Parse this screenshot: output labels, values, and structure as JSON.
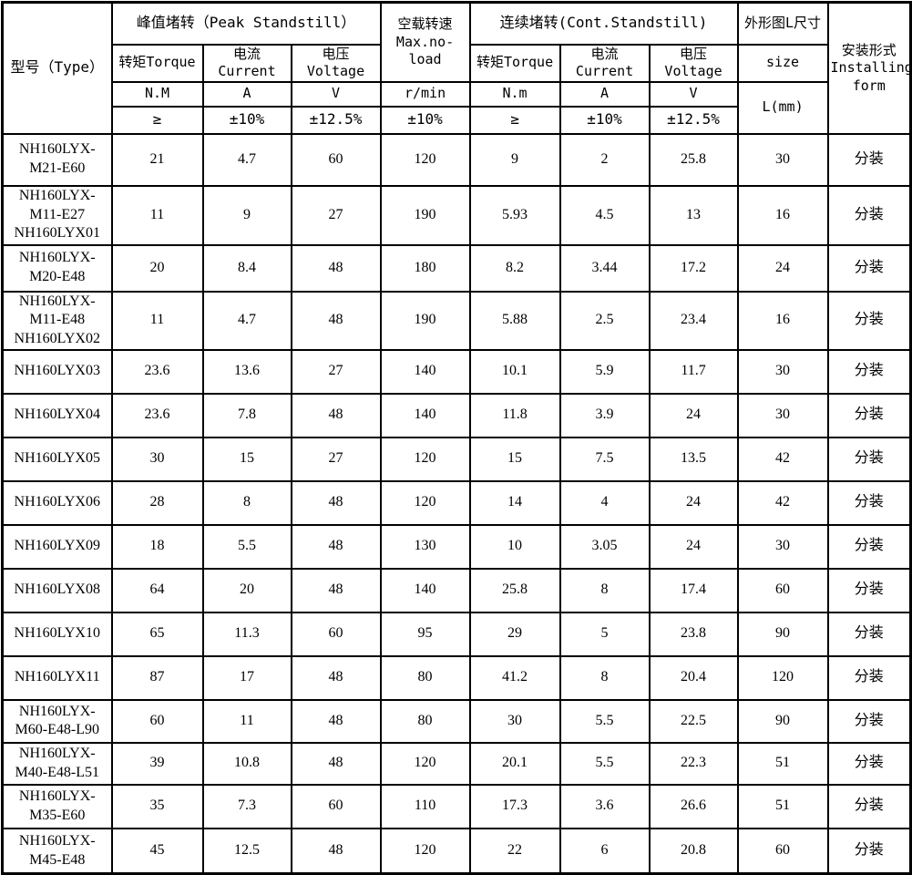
{
  "table": {
    "header": {
      "type_label": "型号（Type）",
      "peak_group": "峰值堵转（Peak Standstill）",
      "noload_group": "空载转速\nMax.no-load",
      "cont_group": "连续堵转(Cont.Standstill)",
      "size_group": "外形图L尺寸",
      "install_group": "安装形式\nInstalling\nform",
      "peak_torque": "转矩Torque",
      "peak_current": "电流Current",
      "peak_voltage": "电压Voltage",
      "cont_torque": "转矩Torque",
      "cont_current": "电流Current",
      "cont_voltage": "电压Voltage",
      "size_label": "size",
      "units": [
        "N.M",
        "A",
        "V",
        "r/min",
        "N.m",
        "A",
        "V",
        "L(mm)"
      ],
      "tolerances": [
        "≥",
        "±10%",
        "±12.5%",
        "±10%",
        "≥",
        "±10%",
        "±12.5%"
      ]
    },
    "rows": [
      {
        "model": "NH160LYX-\nM21-E60",
        "peak_torque": "21",
        "peak_current": "4.7",
        "peak_voltage": "60",
        "noload_speed": "120",
        "cont_torque": "9",
        "cont_current": "2",
        "cont_voltage": "25.8",
        "size_l": "30",
        "install": "分装"
      },
      {
        "model": "NH160LYX-\nM11-E27\nNH160LYX01",
        "peak_torque": "11",
        "peak_current": "9",
        "peak_voltage": "27",
        "noload_speed": "190",
        "cont_torque": "5.93",
        "cont_current": "4.5",
        "cont_voltage": "13",
        "size_l": "16",
        "install": "分装"
      },
      {
        "model": "NH160LYX-\nM20-E48",
        "peak_torque": "20",
        "peak_current": "8.4",
        "peak_voltage": "48",
        "noload_speed": "180",
        "cont_torque": "8.2",
        "cont_current": "3.44",
        "cont_voltage": "17.2",
        "size_l": "24",
        "install": "分装"
      },
      {
        "model": "NH160LYX-\nM11-E48\nNH160LYX02",
        "peak_torque": "11",
        "peak_current": "4.7",
        "peak_voltage": "48",
        "noload_speed": "190",
        "cont_torque": "5.88",
        "cont_current": "2.5",
        "cont_voltage": "23.4",
        "size_l": "16",
        "install": "分装"
      },
      {
        "model": "NH160LYX03",
        "peak_torque": "23.6",
        "peak_current": "13.6",
        "peak_voltage": "27",
        "noload_speed": "140",
        "cont_torque": "10.1",
        "cont_current": "5.9",
        "cont_voltage": "11.7",
        "size_l": "30",
        "install": "分装"
      },
      {
        "model": "NH160LYX04",
        "peak_torque": "23.6",
        "peak_current": "7.8",
        "peak_voltage": "48",
        "noload_speed": "140",
        "cont_torque": "11.8",
        "cont_current": "3.9",
        "cont_voltage": "24",
        "size_l": "30",
        "install": "分装"
      },
      {
        "model": "NH160LYX05",
        "peak_torque": "30",
        "peak_current": "15",
        "peak_voltage": "27",
        "noload_speed": "120",
        "cont_torque": "15",
        "cont_current": "7.5",
        "cont_voltage": "13.5",
        "size_l": "42",
        "install": "分装"
      },
      {
        "model": "NH160LYX06",
        "peak_torque": "28",
        "peak_current": "8",
        "peak_voltage": "48",
        "noload_speed": "120",
        "cont_torque": "14",
        "cont_current": "4",
        "cont_voltage": "24",
        "size_l": "42",
        "install": "分装"
      },
      {
        "model": "NH160LYX09",
        "peak_torque": "18",
        "peak_current": "5.5",
        "peak_voltage": "48",
        "noload_speed": "130",
        "cont_torque": "10",
        "cont_current": "3.05",
        "cont_voltage": "24",
        "size_l": "30",
        "install": "分装"
      },
      {
        "model": "NH160LYX08",
        "peak_torque": "64",
        "peak_current": "20",
        "peak_voltage": "48",
        "noload_speed": "140",
        "cont_torque": "25.8",
        "cont_current": "8",
        "cont_voltage": "17.4",
        "size_l": "60",
        "install": "分装"
      },
      {
        "model": "NH160LYX10",
        "peak_torque": "65",
        "peak_current": "11.3",
        "peak_voltage": "60",
        "noload_speed": "95",
        "cont_torque": "29",
        "cont_current": "5",
        "cont_voltage": "23.8",
        "size_l": "90",
        "install": "分装"
      },
      {
        "model": "NH160LYX11",
        "peak_torque": "87",
        "peak_current": "17",
        "peak_voltage": "48",
        "noload_speed": "80",
        "cont_torque": "41.2",
        "cont_current": "8",
        "cont_voltage": "20.4",
        "size_l": "120",
        "install": "分装"
      },
      {
        "model": "NH160LYX-\nM60-E48-L90",
        "peak_torque": "60",
        "peak_current": "11",
        "peak_voltage": "48",
        "noload_speed": "80",
        "cont_torque": "30",
        "cont_current": "5.5",
        "cont_voltage": "22.5",
        "size_l": "90",
        "install": "分装"
      },
      {
        "model": "NH160LYX-\nM40-E48-L51",
        "peak_torque": "39",
        "peak_current": "10.8",
        "peak_voltage": "48",
        "noload_speed": "120",
        "cont_torque": "20.1",
        "cont_current": "5.5",
        "cont_voltage": "22.3",
        "size_l": "51",
        "install": "分装"
      },
      {
        "model": "NH160LYX-\nM35-E60",
        "peak_torque": "35",
        "peak_current": "7.3",
        "peak_voltage": "60",
        "noload_speed": "110",
        "cont_torque": "17.3",
        "cont_current": "3.6",
        "cont_voltage": "26.6",
        "size_l": "51",
        "install": "分装"
      },
      {
        "model": "NH160LYX-\nM45-E48",
        "peak_torque": "45",
        "peak_current": "12.5",
        "peak_voltage": "48",
        "noload_speed": "120",
        "cont_torque": "22",
        "cont_current": "6",
        "cont_voltage": "20.8",
        "size_l": "60",
        "install": "分装"
      }
    ]
  }
}
